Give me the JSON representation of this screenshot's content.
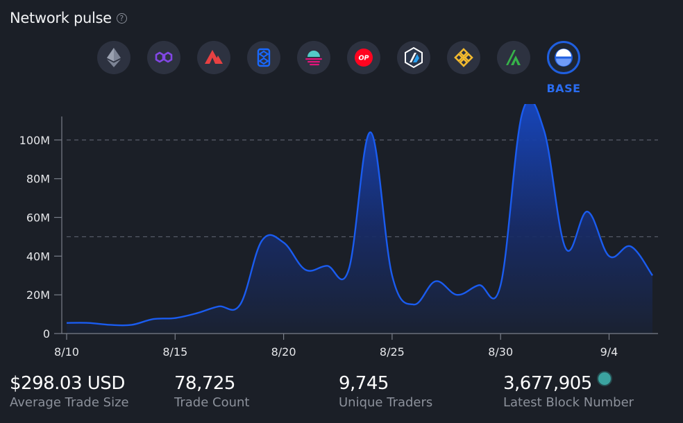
{
  "header": {
    "title": "Network pulse"
  },
  "networks": {
    "items": [
      {
        "name": "ethereum",
        "icon": "ethereum-icon"
      },
      {
        "name": "polygon",
        "icon": "polygon-icon"
      },
      {
        "name": "avalanche",
        "icon": "avalanche-icon"
      },
      {
        "name": "fantom",
        "icon": "fantom-icon"
      },
      {
        "name": "moonbeam",
        "icon": "moonbeam-icon"
      },
      {
        "name": "optimism",
        "icon": "optimism-icon",
        "badge": "OP"
      },
      {
        "name": "arbitrum",
        "icon": "arbitrum-icon"
      },
      {
        "name": "bnb-chain",
        "icon": "bnb-icon"
      },
      {
        "name": "arbitrum-nova",
        "icon": "nova-icon"
      },
      {
        "name": "base",
        "icon": "base-icon"
      }
    ],
    "active_label": "BASE",
    "active_index": 9
  },
  "chart_data": {
    "type": "area",
    "x": [
      "8/10",
      "8/11",
      "8/12",
      "8/13",
      "8/14",
      "8/15",
      "8/16",
      "8/17",
      "8/18",
      "8/19",
      "8/20",
      "8/21",
      "8/22",
      "8/23",
      "8/24",
      "8/25",
      "8/26",
      "8/27",
      "8/28",
      "8/29",
      "8/30",
      "8/31",
      "9/1",
      "9/2",
      "9/3",
      "9/4",
      "9/5",
      "9/6"
    ],
    "values": [
      5.5,
      5.5,
      4.5,
      4.5,
      7.5,
      8,
      10.5,
      14,
      15,
      48,
      47,
      33,
      35,
      33,
      104,
      30,
      15,
      27,
      20,
      25,
      25,
      114,
      105,
      44,
      63,
      40,
      45,
      30
    ],
    "x_ticks": [
      "8/10",
      "8/15",
      "8/20",
      "8/25",
      "8/30",
      "9/4"
    ],
    "y_ticks": [
      "0",
      "20M",
      "40M",
      "60M",
      "80M",
      "100M"
    ],
    "y_tick_values": [
      0,
      20,
      40,
      60,
      80,
      100
    ],
    "ylim": [
      0,
      115
    ],
    "reference_lines": [
      100,
      50
    ],
    "color": "#1a5cf0",
    "grid": false
  },
  "stats": [
    {
      "value": "$298.03 USD",
      "label": "Average Trade Size"
    },
    {
      "value": "78,725",
      "label": "Trade Count"
    },
    {
      "value": "9,745",
      "label": "Unique Traders"
    },
    {
      "value": "3,677,905",
      "label": "Latest Block Number"
    }
  ],
  "colors": {
    "background": "#1b1f27",
    "accent": "#1f5fe0",
    "pulse": "#3ba3a0"
  }
}
